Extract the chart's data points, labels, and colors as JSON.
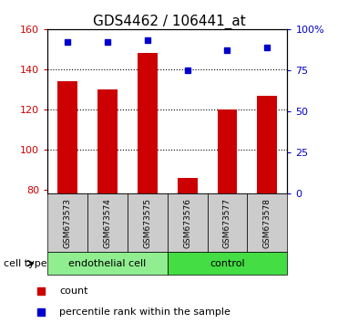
{
  "title": "GDS4462 / 106441_at",
  "samples": [
    "GSM673573",
    "GSM673574",
    "GSM673575",
    "GSM673576",
    "GSM673577",
    "GSM673578"
  ],
  "counts": [
    134,
    130,
    148,
    86,
    120,
    127
  ],
  "percentiles": [
    92,
    92,
    93,
    75,
    87,
    89
  ],
  "bar_color": "#cc0000",
  "dot_color": "#0000cc",
  "ylim_left": [
    78,
    160
  ],
  "ylim_right": [
    0,
    100
  ],
  "yticks_left": [
    80,
    100,
    120,
    140,
    160
  ],
  "yticks_right": [
    0,
    25,
    50,
    75,
    100
  ],
  "ytick_labels_left": [
    "80",
    "100",
    "120",
    "140",
    "160"
  ],
  "ytick_labels_right": [
    "0",
    "25",
    "50",
    "75",
    "100%"
  ],
  "groups": [
    {
      "label": "endothelial cell",
      "indices": [
        0,
        1,
        2
      ],
      "color": "#90ee90"
    },
    {
      "label": "control",
      "indices": [
        3,
        4,
        5
      ],
      "color": "#44dd44"
    }
  ],
  "cell_type_label": "cell type",
  "legend_count_label": "count",
  "legend_percentile_label": "percentile rank within the sample",
  "bg_plot": "#ffffff",
  "tick_area_bg": "#cccccc",
  "grid_color": "#000000",
  "title_fontsize": 11,
  "tick_fontsize": 8,
  "label_fontsize": 8,
  "gridlines_at": [
    100,
    120,
    140
  ]
}
